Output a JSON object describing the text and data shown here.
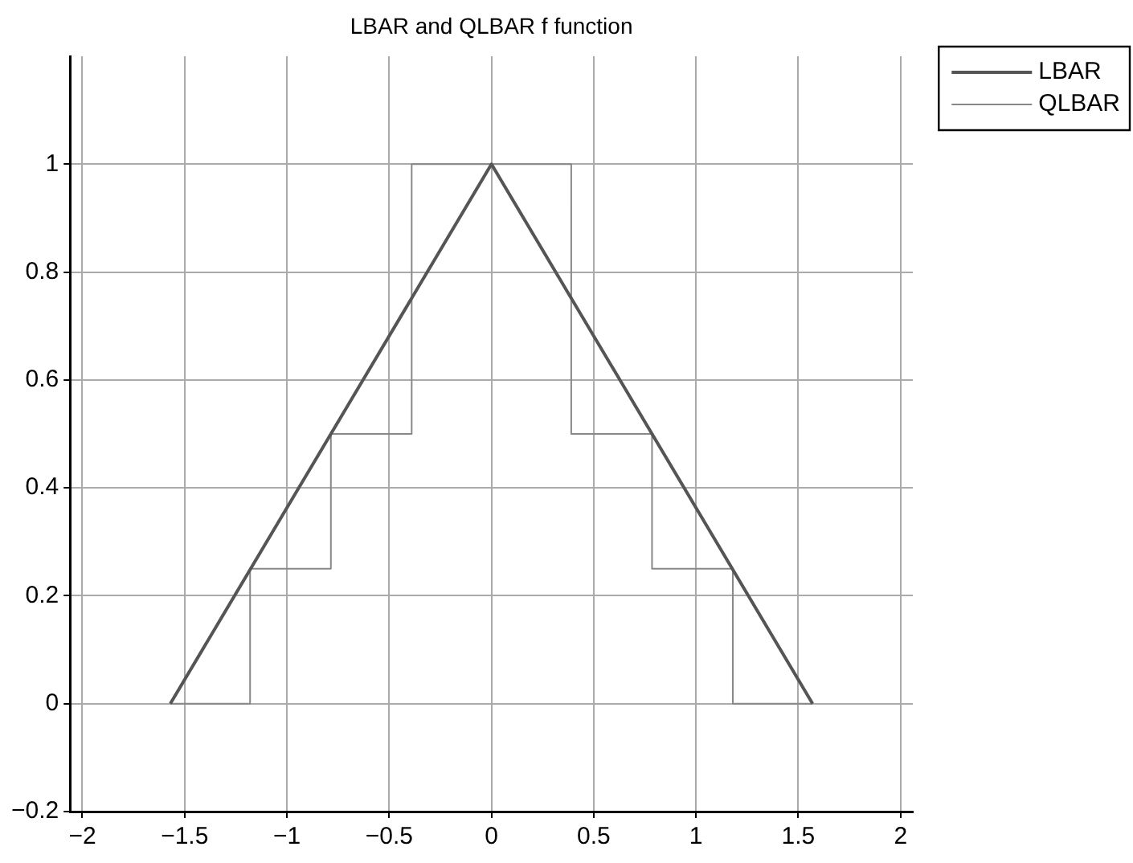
{
  "chart_data": {
    "type": "line",
    "title": "LBAR and QLBAR f function",
    "series": [
      {
        "name": "LBAR",
        "color": "#555555",
        "x": [
          -1.57,
          0,
          1.57
        ],
        "values": [
          0,
          1,
          0
        ]
      },
      {
        "name": "QLBAR",
        "color": "#888888",
        "x": [
          -1.57,
          -1.18,
          -1.18,
          -0.785,
          -0.785,
          -0.39,
          -0.39,
          0.39,
          0.39,
          0.785,
          0.785,
          1.18,
          1.18,
          1.57
        ],
        "values": [
          0,
          0,
          0.25,
          0.25,
          0.5,
          0.5,
          1,
          1,
          0.5,
          0.5,
          0.25,
          0.25,
          0,
          0
        ]
      }
    ],
    "xlim": [
      -2.06,
      2.06
    ],
    "xticks": [
      -2,
      -1.5,
      -1,
      -0.5,
      0,
      0.5,
      1,
      1.5,
      2
    ],
    "ylim": [
      -0.2,
      1.2
    ],
    "yticks": [
      -0.2,
      0,
      0.2,
      0.4,
      0.6,
      0.8,
      1
    ],
    "grid": true,
    "legend": "top right",
    "marker": "none",
    "line_style": "solid"
  }
}
